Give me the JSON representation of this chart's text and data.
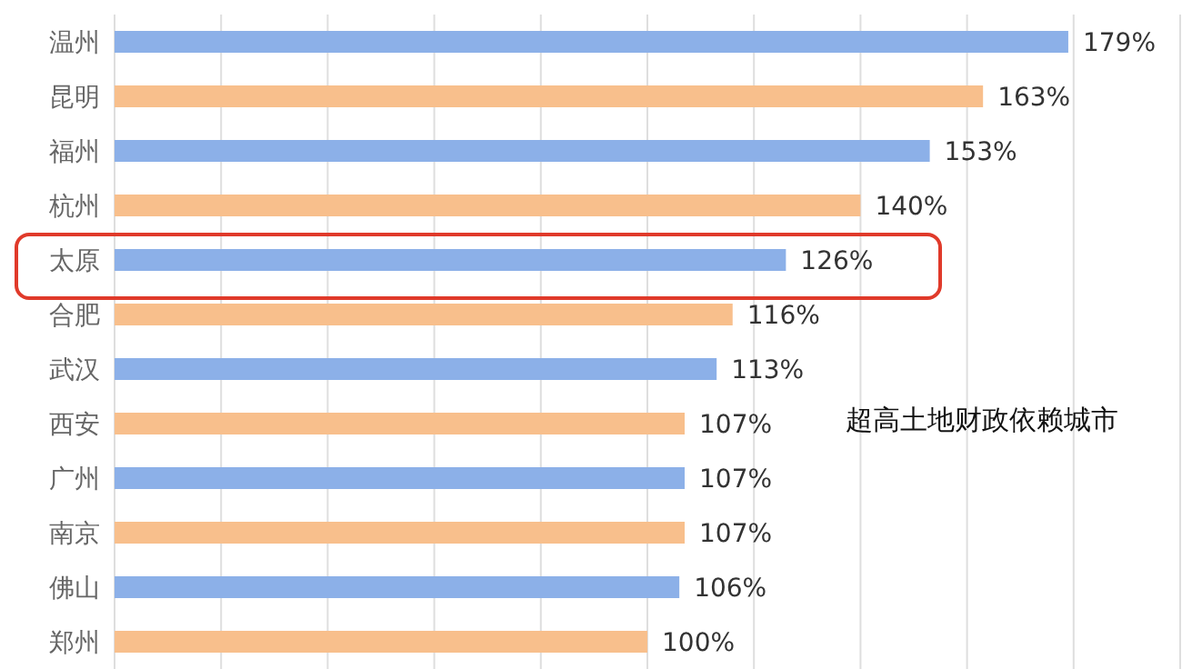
{
  "chart_data": {
    "type": "bar",
    "orientation": "horizontal",
    "categories": [
      "温州",
      "昆明",
      "福州",
      "杭州",
      "太原",
      "合肥",
      "武汉",
      "西安",
      "广州",
      "南京",
      "佛山",
      "郑州"
    ],
    "values": [
      179,
      163,
      153,
      140,
      126,
      116,
      113,
      107,
      107,
      107,
      106,
      100
    ],
    "value_labels": [
      "179%",
      "163%",
      "153%",
      "140%",
      "126%",
      "116%",
      "113%",
      "107%",
      "107%",
      "107%",
      "106%",
      "100%"
    ],
    "colors": [
      "#8cb0e8",
      "#f8bf8c",
      "#8cb0e8",
      "#f8bf8c",
      "#8cb0e8",
      "#f8bf8c",
      "#8cb0e8",
      "#f8bf8c",
      "#8cb0e8",
      "#f8bf8c",
      "#8cb0e8",
      "#f8bf8c"
    ],
    "xlim": [
      0,
      200
    ],
    "xticks": [
      {
        "value": 0,
        "label": null
      },
      {
        "value": 20,
        "label": null
      },
      {
        "value": 40,
        "label": null
      },
      {
        "value": 60,
        "label": null
      },
      {
        "value": 80,
        "label": null
      },
      {
        "value": 100,
        "label": null
      },
      {
        "value": 120,
        "label": null
      },
      {
        "value": 140,
        "label": null
      },
      {
        "value": 160,
        "label": null
      },
      {
        "value": 180,
        "label": null
      },
      {
        "value": 200,
        "label": null
      }
    ],
    "grid": "x",
    "tick_labels": "y",
    "annotations": [
      "超高土地财政依赖城市"
    ]
  }
}
